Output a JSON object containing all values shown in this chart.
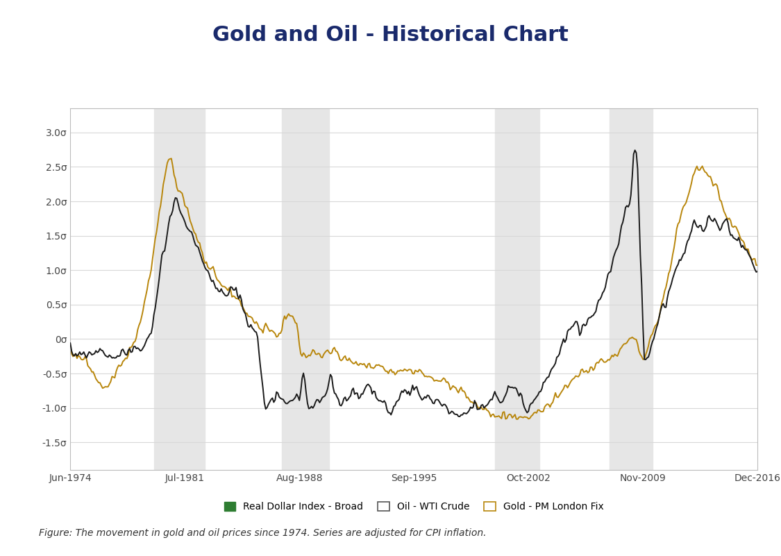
{
  "title": "Gold and Oil - Historical Chart",
  "title_color": "#1a2a6c",
  "title_fontsize": 22,
  "ylabel_ticks": [
    "3.0σ",
    "2.5σ",
    "2.0σ",
    "1.5σ",
    "1.0σ",
    "0.5σ",
    "0σ",
    "-0.5σ",
    "-1.0σ",
    "-1.5σ"
  ],
  "ytick_values": [
    3.0,
    2.5,
    2.0,
    1.5,
    1.0,
    0.5,
    0.0,
    -0.5,
    -1.0,
    -1.5
  ],
  "xtick_labels": [
    "Jun-1974",
    "Jul-1981",
    "Aug-1988",
    "Sep-1995",
    "Oct-2002",
    "Nov-2009",
    "Dec-2016"
  ],
  "background_color": "#ffffff",
  "plot_bg_color": "#ffffff",
  "grid_color": "#d8d8d8",
  "shade_color": "#e6e6e6",
  "oil_color": "#1a1a1a",
  "gold_color": "#b8860b",
  "oil_linewidth": 1.4,
  "gold_linewidth": 1.4,
  "figure_caption": "Figure: The movement in gold and oil prices since 1974. Series are adjusted for CPI inflation.",
  "legend_labels": [
    "Real Dollar Index - Broad",
    "Oil - WTI Crude",
    "Gold - PM London Fix"
  ],
  "green_color": "#2e7d32"
}
